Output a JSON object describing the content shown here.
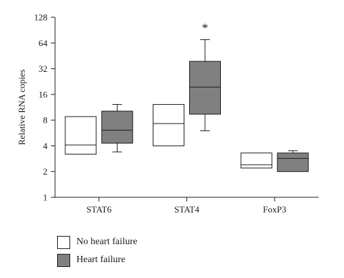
{
  "chart_data": {
    "type": "box",
    "ylabel": "Relative RNA copies",
    "yscale": "log2",
    "ylim": [
      1,
      128
    ],
    "yticks": [
      1,
      2,
      4,
      8,
      16,
      32,
      64,
      128
    ],
    "categories": [
      "STAT6",
      "STAT4",
      "FoxP3"
    ],
    "series": [
      {
        "name": "No heart failure",
        "color": "#ffffff",
        "boxes": [
          {
            "category": "STAT6",
            "whisker_low": 3.2,
            "q1": 3.2,
            "median": 4.1,
            "q3": 8.8,
            "whisker_high": 8.8
          },
          {
            "category": "STAT4",
            "whisker_low": 4.0,
            "q1": 4.0,
            "median": 7.3,
            "q3": 12.2,
            "whisker_high": 12.2
          },
          {
            "category": "FoxP3",
            "whisker_low": 2.2,
            "q1": 2.2,
            "median": 2.4,
            "q3": 3.3,
            "whisker_high": 3.3
          }
        ]
      },
      {
        "name": "Heart failure",
        "color": "#808080",
        "boxes": [
          {
            "category": "STAT6",
            "whisker_low": 3.4,
            "q1": 4.3,
            "median": 6.1,
            "q3": 10.2,
            "whisker_high": 12.2
          },
          {
            "category": "STAT4",
            "whisker_low": 6.0,
            "q1": 9.4,
            "median": 19.5,
            "q3": 39.0,
            "whisker_high": 70.0
          },
          {
            "category": "FoxP3",
            "whisker_low": 2.0,
            "q1": 2.0,
            "median": 2.85,
            "q3": 3.3,
            "whisker_high": 3.5
          }
        ]
      }
    ],
    "annotations": [
      {
        "text": "*",
        "category": "STAT4",
        "series": "Heart failure",
        "y": 100
      }
    ],
    "legend_position": "bottom-left"
  }
}
